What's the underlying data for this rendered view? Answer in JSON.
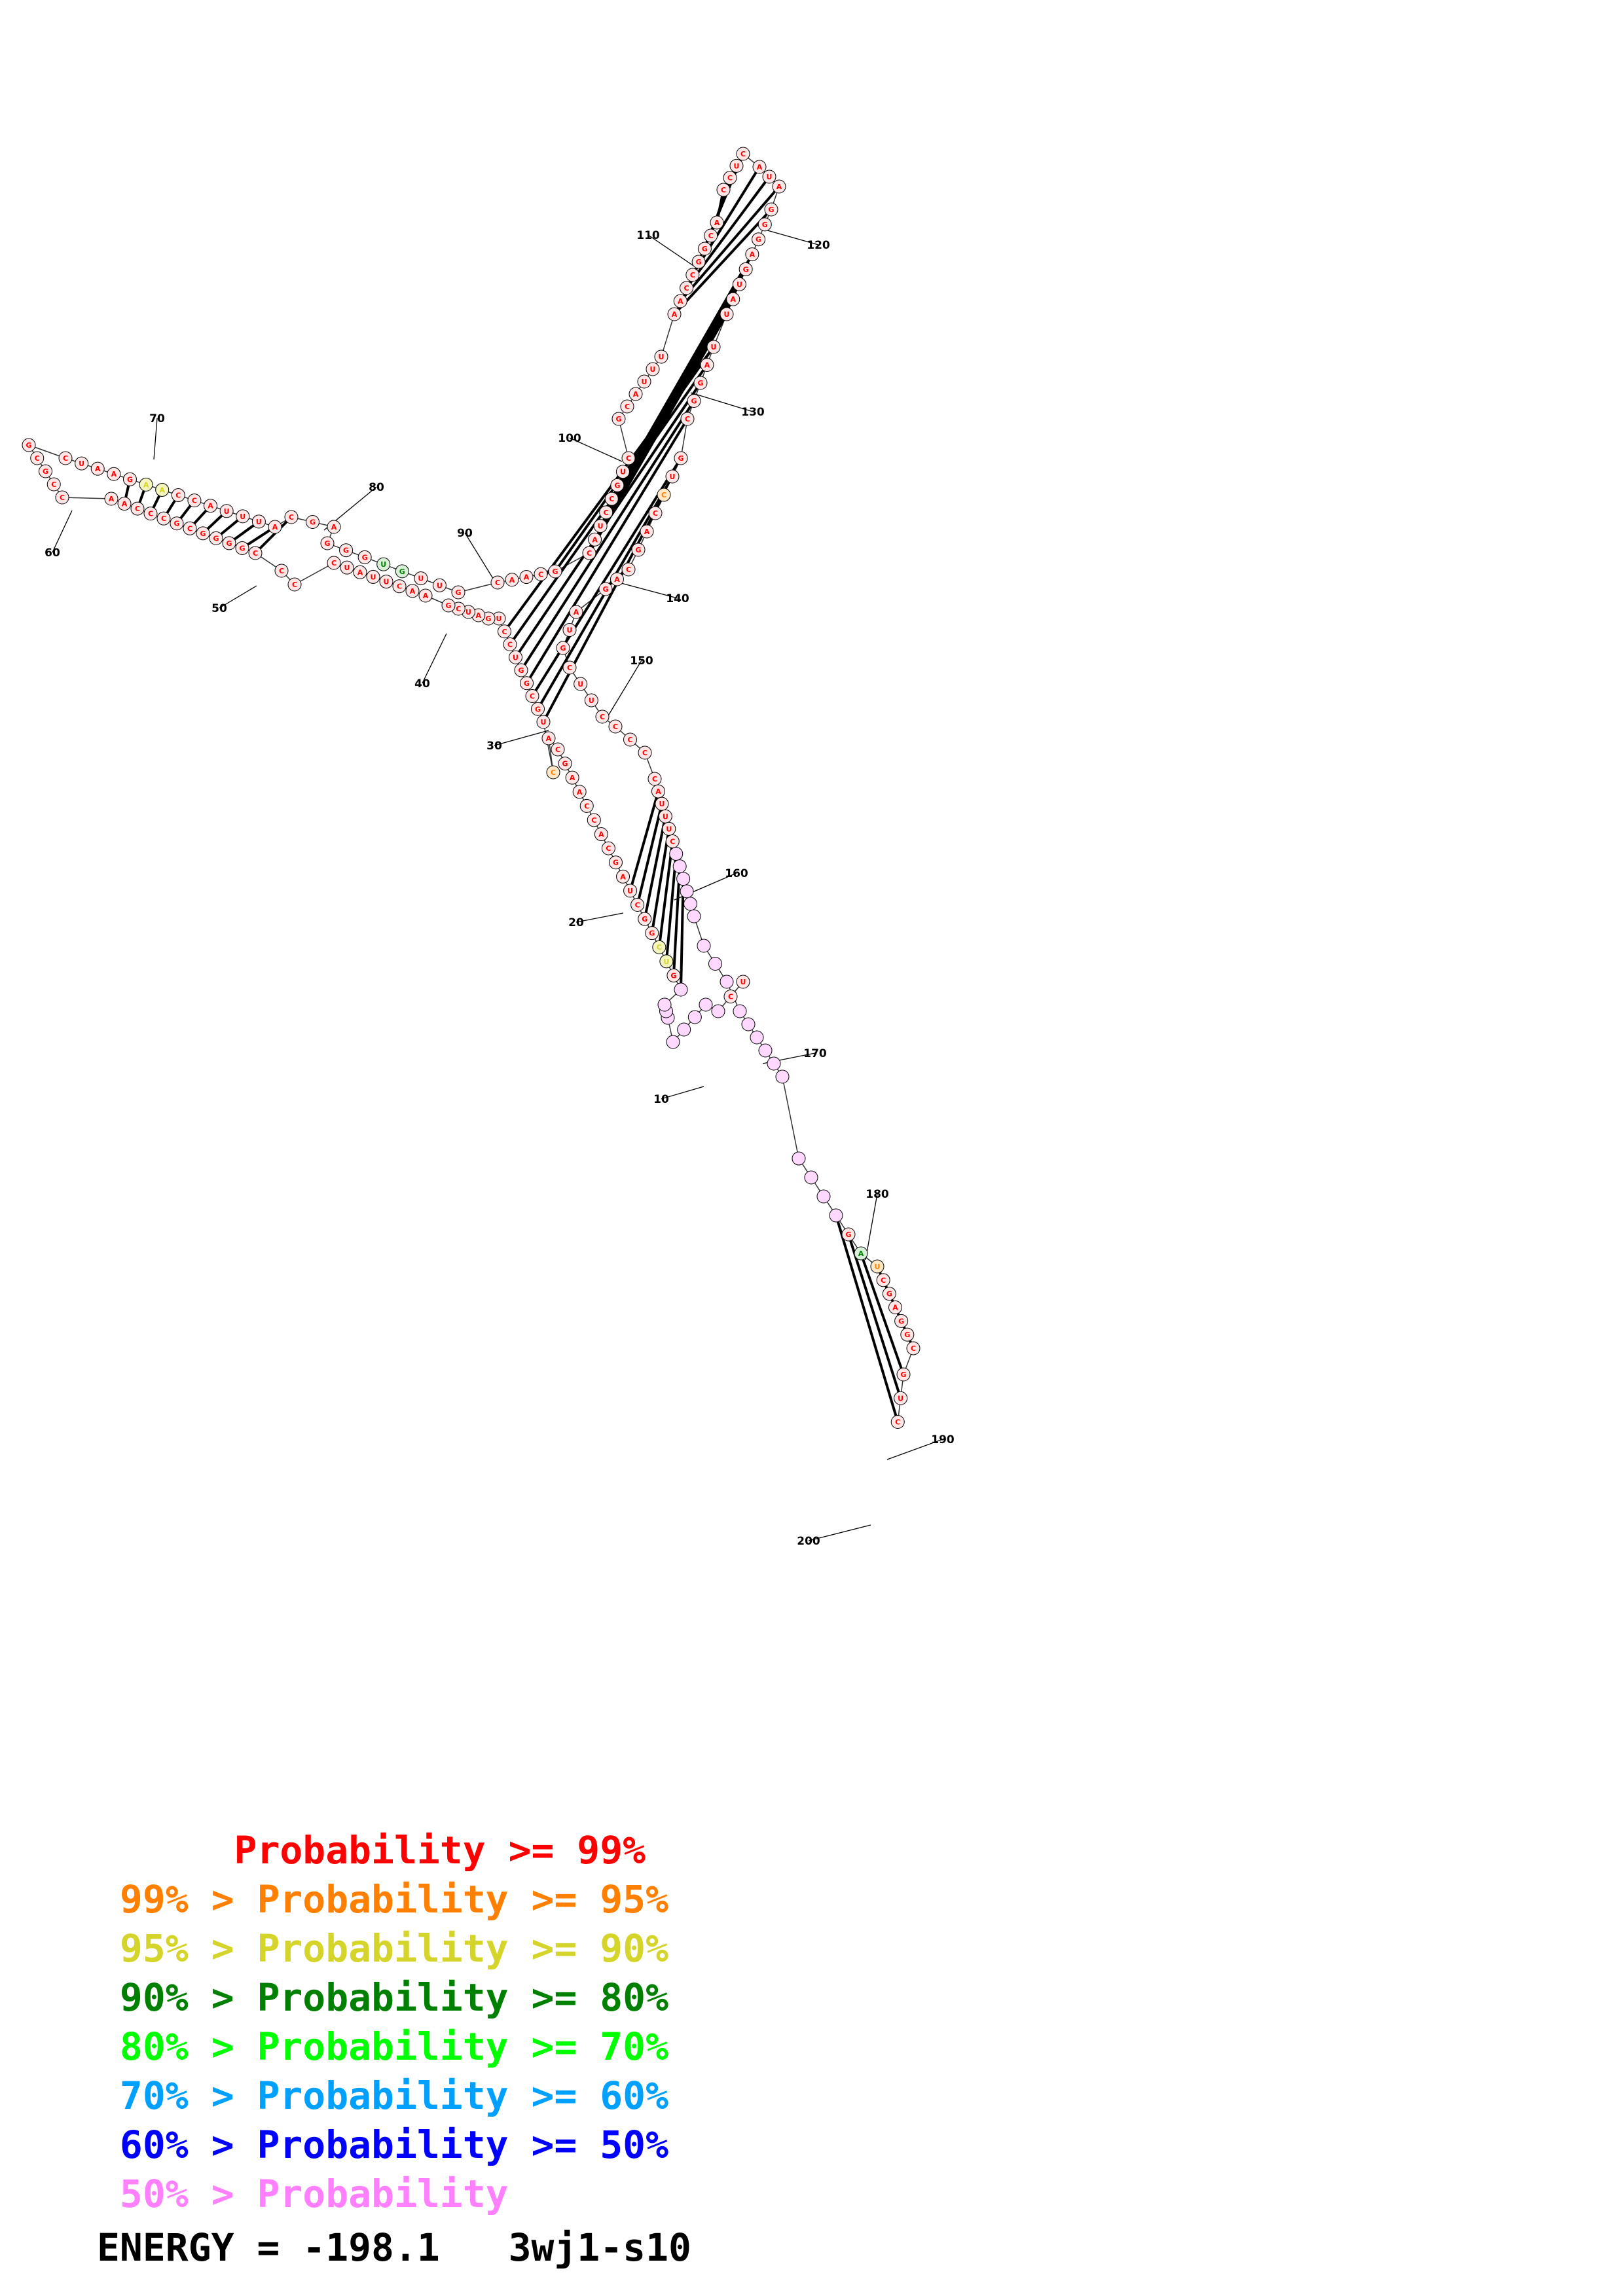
{
  "legend": [
    {
      "prefix": "",
      "label": "Probability",
      "suffix": ">= 99%",
      "color": "#ff0000"
    },
    {
      "prefix": "99% >",
      "label": "Probability",
      "suffix": ">= 95%",
      "color": "#ff8000"
    },
    {
      "prefix": "95% >",
      "label": "Probability",
      "suffix": ">= 90%",
      "color": "#d4d42a"
    },
    {
      "prefix": "90% >",
      "label": "Probability",
      "suffix": ">= 80%",
      "color": "#008000"
    },
    {
      "prefix": "80% >",
      "label": "Probability",
      "suffix": ">= 70%",
      "color": "#00ff00"
    },
    {
      "prefix": "70% >",
      "label": "Probability",
      "suffix": ">= 60%",
      "color": "#00a0ff"
    },
    {
      "prefix": "60% >",
      "label": "Probability",
      "suffix": ">= 50%",
      "color": "#0000ff"
    },
    {
      "prefix": "50% >",
      "label": "Probability",
      "suffix": "",
      "color": "#ff80ff"
    }
  ],
  "energy_label": "ENERGY =",
  "energy_value": "-198.1",
  "structure_id": "3wj1-s10",
  "position_labels": [
    "10",
    "20",
    "30",
    "40",
    "50",
    "60",
    "70",
    "80",
    "90",
    "100",
    "110",
    "120",
    "130",
    "140",
    "150",
    "160",
    "170",
    "180",
    "190",
    "200"
  ],
  "sequence_visible": "UCAAGGCGCAAGUCGGCUAGCACCAAGCACUGCGGUCCUGAUCGAACUUAUCCCCGGGGCGCCCAACCGCGCUAAGAACCAUUUACGAGGGUGUUGCAACGCAUCCGUCGCAUUUAACCGGCACCUCAUAGGGAGUAUUAGGCGUCCAGCAGAUGCUUCCCCCAUUUCCCCCCCCCAGAUACGUCCUGAUCGAGGCGUC"
}
